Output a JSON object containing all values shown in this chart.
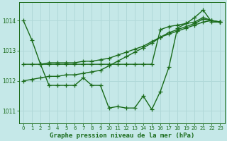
{
  "xlabel": "Graphe pression niveau de la mer (hPa)",
  "bg_color": "#c5e8e8",
  "grid_color": "#b0d8d8",
  "line_color": "#1a6b1a",
  "marker": "+",
  "markersize": 4,
  "linewidth": 1.0,
  "ylim": [
    1010.6,
    1014.6
  ],
  "xlim": [
    -0.5,
    23.5
  ],
  "yticks": [
    1011,
    1012,
    1013,
    1014
  ],
  "xticks": [
    0,
    1,
    2,
    3,
    4,
    5,
    6,
    7,
    8,
    9,
    10,
    11,
    12,
    13,
    14,
    15,
    16,
    17,
    18,
    19,
    20,
    21,
    22,
    23
  ],
  "line1_x": [
    0,
    1,
    2,
    3,
    4,
    5,
    6,
    7,
    8,
    9,
    10,
    11,
    12,
    13,
    14,
    15,
    16,
    17,
    18,
    19,
    20,
    21,
    22,
    23
  ],
  "line1_y": [
    1014.0,
    1013.35,
    1012.55,
    1011.85,
    1011.85,
    1011.85,
    1011.85,
    1012.1,
    1011.85,
    1011.85,
    1011.1,
    1011.15,
    1011.1,
    1011.1,
    1011.5,
    1011.05,
    1011.65,
    1012.45,
    1013.75,
    1013.9,
    1014.1,
    1014.35,
    1013.95,
    1013.95
  ],
  "line2_x": [
    0,
    1,
    2,
    3,
    4,
    5,
    6,
    7,
    8,
    9,
    10,
    11,
    12,
    13,
    14,
    15,
    16,
    17,
    18,
    19,
    20,
    21,
    22,
    23
  ],
  "line2_y": [
    1012.55,
    1012.55,
    1012.55,
    1012.6,
    1012.6,
    1012.6,
    1012.6,
    1012.65,
    1012.65,
    1012.7,
    1012.75,
    1012.85,
    1012.95,
    1013.05,
    1013.15,
    1013.3,
    1013.45,
    1013.55,
    1013.65,
    1013.75,
    1013.85,
    1013.95,
    1014.0,
    1013.95
  ],
  "line3_x": [
    0,
    1,
    2,
    3,
    4,
    5,
    6,
    7,
    8,
    9,
    10,
    11,
    12,
    13,
    14,
    15,
    16,
    17,
    18,
    19,
    20,
    21,
    22,
    23
  ],
  "line3_y": [
    1012.0,
    1012.05,
    1012.1,
    1012.15,
    1012.15,
    1012.2,
    1012.2,
    1012.25,
    1012.3,
    1012.35,
    1012.5,
    1012.65,
    1012.8,
    1012.95,
    1013.1,
    1013.25,
    1013.45,
    1013.6,
    1013.7,
    1013.8,
    1013.9,
    1014.05,
    1014.0,
    1013.95
  ],
  "line4_x": [
    2,
    3,
    4,
    5,
    6,
    7,
    8,
    9,
    10,
    11,
    12,
    13,
    14,
    15,
    16,
    17,
    18,
    19,
    20,
    21,
    22,
    23
  ],
  "line4_y": [
    1012.55,
    1012.55,
    1012.55,
    1012.55,
    1012.55,
    1012.55,
    1012.55,
    1012.55,
    1012.55,
    1012.55,
    1012.55,
    1012.55,
    1012.55,
    1012.55,
    1013.7,
    1013.8,
    1013.85,
    1013.9,
    1013.95,
    1014.1,
    1014.0,
    1013.95
  ]
}
